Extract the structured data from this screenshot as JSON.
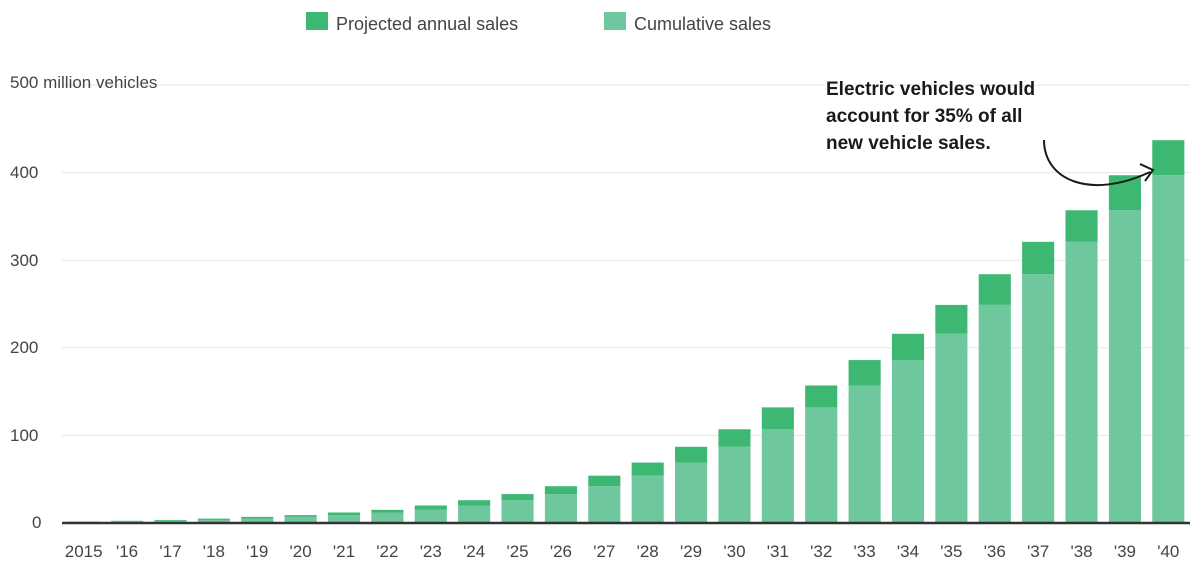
{
  "chart_data": {
    "type": "bar",
    "stacked": true,
    "categories": [
      "2015",
      "'16",
      "'17",
      "'18",
      "'19",
      "'20",
      "'21",
      "'22",
      "'23",
      "'24",
      "'25",
      "'26",
      "'27",
      "'28",
      "'29",
      "'30",
      "'31",
      "'32",
      "'33",
      "'34",
      "'35",
      "'36",
      "'37",
      "'38",
      "'39",
      "'40"
    ],
    "series": [
      {
        "name": "Cumulative sales",
        "color": "#6fc79e",
        "values": [
          1,
          2,
          2.5,
          3.5,
          5,
          7,
          9,
          12,
          15,
          20,
          26,
          33,
          42,
          54,
          69,
          87,
          107,
          132,
          157,
          186,
          216,
          249,
          284,
          321,
          357,
          397
        ]
      },
      {
        "name": "Projected annual sales",
        "color": "#3db872",
        "values": [
          0.5,
          0.5,
          1,
          1.5,
          2,
          2,
          3,
          3,
          5,
          6,
          7,
          9,
          12,
          15,
          18,
          20,
          25,
          25,
          29,
          30,
          33,
          35,
          37,
          36,
          40,
          40
        ]
      }
    ],
    "legend": {
      "position": "top-center"
    },
    "y_unit_label": "500 million vehicles",
    "ytick_labels": [
      "0",
      "100",
      "200",
      "300",
      "400"
    ],
    "ylim": [
      0,
      500
    ],
    "grid": true,
    "annotation": {
      "lines": [
        "Electric vehicles would",
        "account for 35% of all",
        "new vehicle sales."
      ],
      "target_category": "'40"
    }
  }
}
